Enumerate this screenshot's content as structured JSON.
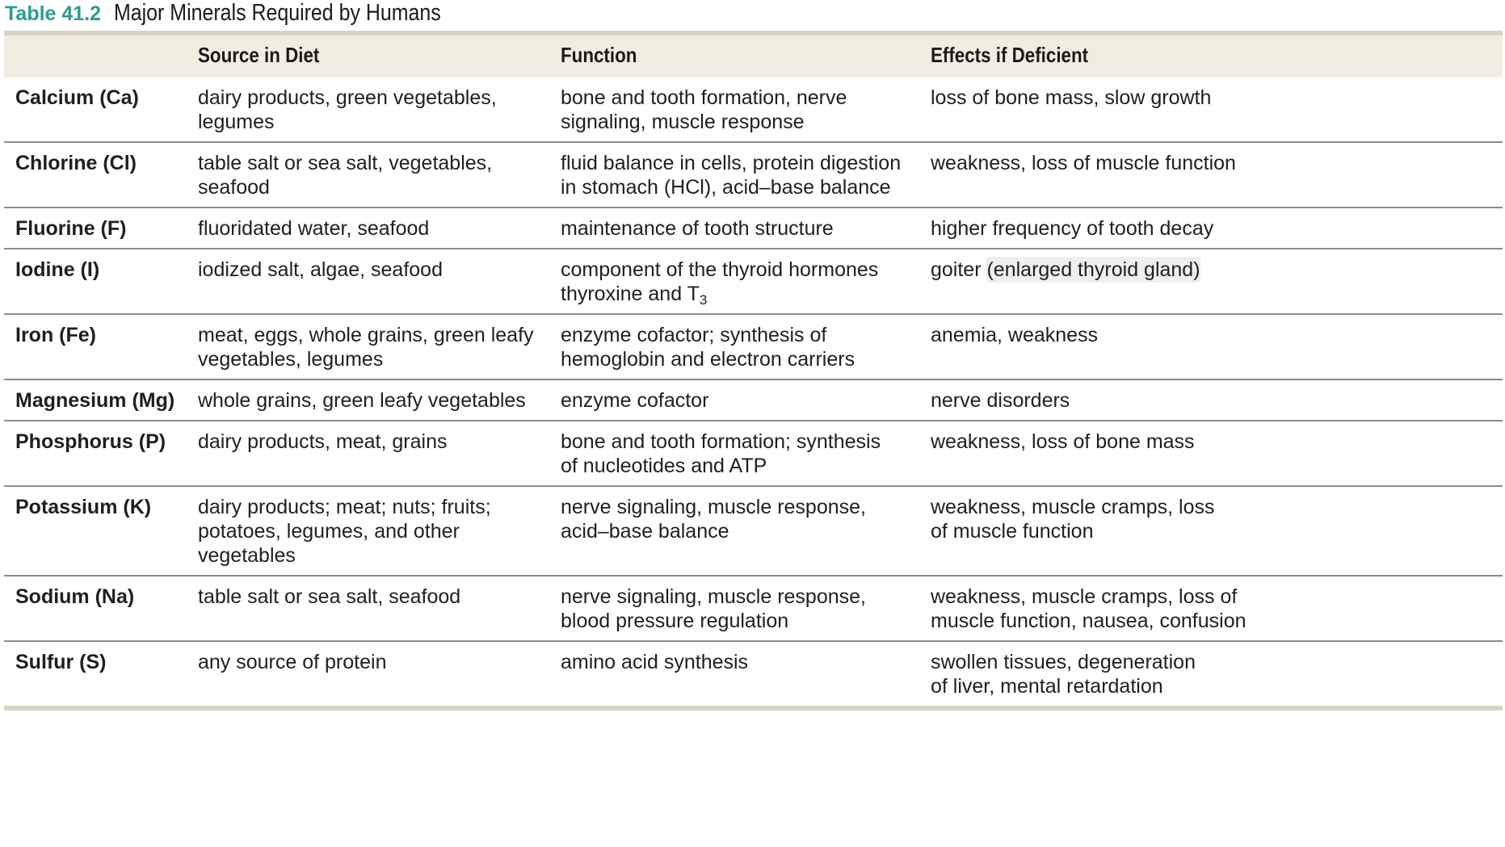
{
  "table": {
    "number": "Table 41.2",
    "caption": "Major Minerals Required by Humans",
    "headers": {
      "mineral": "",
      "source": "Source in Diet",
      "function": "Function",
      "effects": "Effects if Deficient"
    },
    "rows": [
      {
        "mineral": "Calcium (Ca)",
        "source": "dairy products, green vegetables,\nlegumes",
        "function": "bone and tooth formation, nerve\nsignaling, muscle response",
        "effects": "loss of bone mass, slow growth"
      },
      {
        "mineral": "Chlorine (Cl)",
        "source": "table salt or sea salt, vegetables,\nseafood",
        "function": "fluid balance in cells, protein digestion\nin stomach (HCl), acid–base balance",
        "effects": "weakness, loss of muscle function"
      },
      {
        "mineral": "Fluorine (F)",
        "source": "fluoridated water, seafood",
        "function": "maintenance of tooth structure",
        "effects": "higher frequency of tooth decay"
      },
      {
        "mineral": "Iodine (I)",
        "source": "iodized salt, algae, seafood",
        "function_line1": "component of the thyroid hormones",
        "function_line2": "thyroxine and T",
        "function_sub": "3",
        "effects_pre": "goiter ",
        "effects_hl": "(enlarged thyroid gland)"
      },
      {
        "mineral": "Iron (Fe)",
        "source": "meat, eggs, whole grains, green leafy\nvegetables, legumes",
        "function": "enzyme cofactor; synthesis of\nhemoglobin and electron carriers",
        "effects": "anemia, weakness"
      },
      {
        "mineral": "Magnesium (Mg)",
        "source": "whole grains, green leafy vegetables",
        "function": "enzyme cofactor",
        "effects": "nerve disorders"
      },
      {
        "mineral": "Phosphorus (P)",
        "source": "dairy products, meat, grains",
        "function": "bone and tooth formation; synthesis\nof nucleotides and ATP",
        "effects": "weakness, loss of bone mass"
      },
      {
        "mineral": "Potassium (K)",
        "source": "dairy products; meat; nuts; fruits;\npotatoes, legumes, and other\nvegetables",
        "function": "nerve signaling, muscle response,\nacid–base balance",
        "effects": "weakness, muscle cramps, loss\nof muscle function"
      },
      {
        "mineral": "Sodium (Na)",
        "source": "table salt or sea salt, seafood",
        "function": "nerve signaling, muscle response,\nblood pressure regulation",
        "effects": "weakness, muscle cramps, loss of\nmuscle function, nausea, confusion"
      },
      {
        "mineral": "Sulfur (S)",
        "source": "any source of protein",
        "function": "amino acid synthesis",
        "effects": "swollen tissues, degeneration\nof liver, mental retardation"
      }
    ]
  }
}
